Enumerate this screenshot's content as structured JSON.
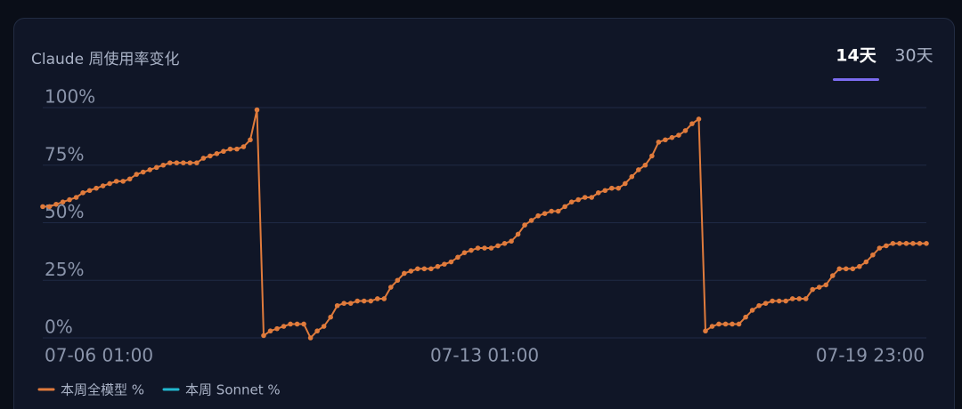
{
  "tabs": [
    "14天",
    "30天"
  ],
  "active_tab": 0,
  "chart_data": {
    "type": "line",
    "title": "Claude 周使用率变化",
    "categories": [
      "07-06 01:00",
      null,
      null,
      null,
      null,
      null,
      null,
      null,
      null,
      null,
      null,
      null,
      null,
      null,
      null,
      null,
      null,
      null,
      null,
      null,
      null,
      null,
      null,
      null,
      null,
      null,
      null,
      null,
      null,
      null,
      null,
      null,
      null,
      null,
      null,
      null,
      null,
      null,
      null,
      null,
      null,
      null,
      null,
      null,
      null,
      null,
      null,
      null,
      null,
      null,
      null,
      null,
      null,
      null,
      null,
      null,
      null,
      null,
      null,
      null,
      null,
      null,
      null,
      null,
      null,
      null,
      "07-13 01:00",
      null,
      null,
      null,
      null,
      null,
      null,
      null,
      null,
      null,
      null,
      null,
      null,
      null,
      null,
      null,
      null,
      null,
      null,
      null,
      null,
      null,
      null,
      null,
      null,
      null,
      null,
      null,
      null,
      null,
      null,
      null,
      null,
      null,
      null,
      null,
      null,
      null,
      null,
      null,
      null,
      null,
      null,
      null,
      null,
      null,
      null,
      null,
      null,
      null,
      null,
      null,
      null,
      null,
      null,
      null,
      null,
      null,
      null,
      null,
      null,
      null,
      null,
      null,
      null,
      null,
      "07-19 23:00"
    ],
    "series": [
      {
        "name": "本周全模型 %",
        "color": "#e07b3c",
        "values": [
          57,
          57,
          58,
          59,
          60,
          61,
          63,
          64,
          65,
          66,
          67,
          68,
          68,
          69,
          71,
          72,
          73,
          74,
          75,
          76,
          76,
          76,
          76,
          76,
          78,
          79,
          80,
          81,
          82,
          82,
          83,
          86,
          99,
          1,
          3,
          4,
          5,
          6,
          6,
          6,
          0,
          3,
          5,
          9,
          14,
          15,
          15,
          16,
          16,
          16,
          17,
          17,
          22,
          25,
          28,
          29,
          30,
          30,
          30,
          31,
          32,
          33,
          35,
          37,
          38,
          39,
          39,
          39,
          40,
          41,
          42,
          45,
          49,
          51,
          53,
          54,
          55,
          55,
          57,
          59,
          60,
          61,
          61,
          63,
          64,
          65,
          65,
          67,
          70,
          73,
          75,
          79,
          85,
          86,
          87,
          88,
          90,
          93,
          95,
          3,
          5,
          6,
          6,
          6,
          6,
          9,
          12,
          14,
          15,
          16,
          16,
          16,
          17,
          17,
          17,
          21,
          22,
          23,
          27,
          30,
          30,
          30,
          31,
          33,
          36,
          39,
          40,
          41,
          41,
          41,
          41,
          41,
          41
        ]
      },
      {
        "name": "本周 Sonnet %",
        "color": "#22b8cf"
      }
    ],
    "ylim": [
      0,
      100
    ],
    "yticks": [
      {
        "value": 0,
        "label": "0%"
      },
      {
        "value": 25,
        "label": "25%"
      },
      {
        "value": 50,
        "label": "50%"
      },
      {
        "value": 75,
        "label": "75%"
      },
      {
        "value": 100,
        "label": "100%"
      }
    ],
    "grid": true
  }
}
